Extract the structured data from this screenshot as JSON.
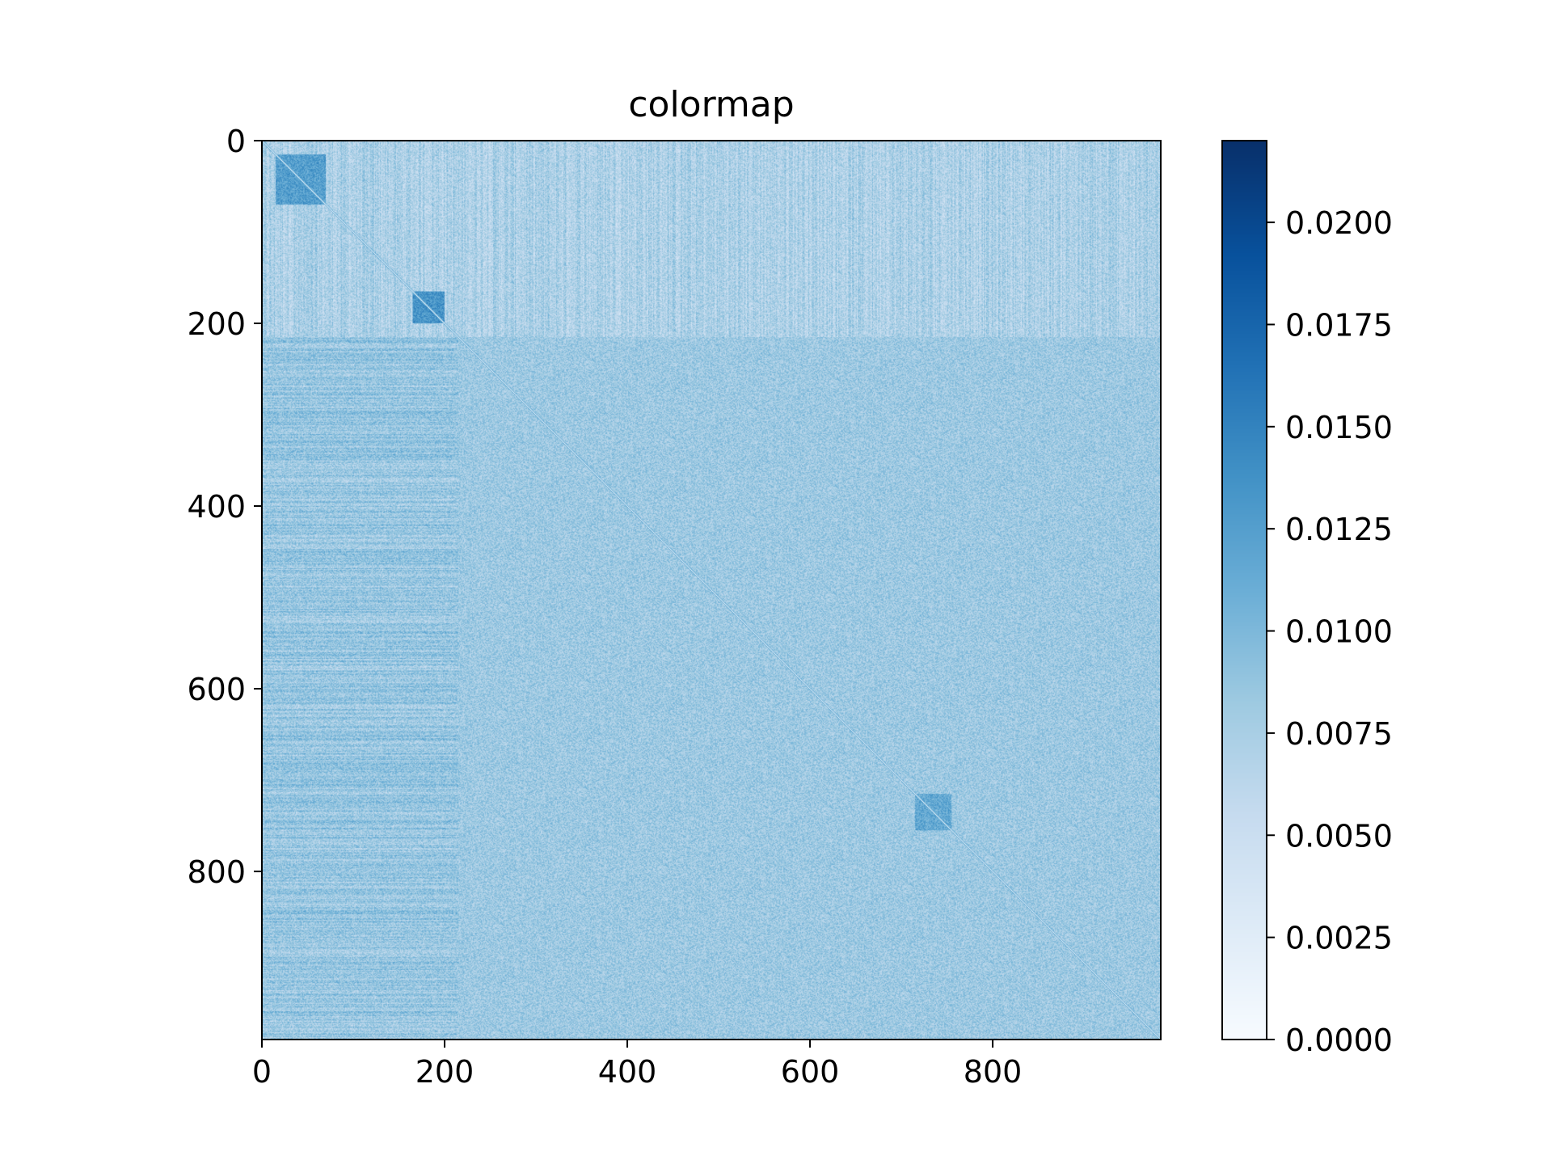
{
  "chart_data": {
    "type": "heatmap",
    "title": "colormap",
    "xlabel": "",
    "ylabel": "",
    "matrix_size": 984,
    "x_ticks": [
      0,
      200,
      400,
      600,
      800
    ],
    "y_ticks": [
      0,
      200,
      400,
      600,
      800
    ],
    "xlim": [
      0,
      984
    ],
    "ylim": [
      984,
      0
    ],
    "y_axis_inverted": true,
    "grid": false,
    "colormap": "Blues",
    "colormap_stops": [
      "#f7fbff",
      "#deebf7",
      "#c6dbef",
      "#9ecae1",
      "#6baed6",
      "#4292c6",
      "#2171b5",
      "#08519c",
      "#08306b"
    ],
    "color_range": [
      0.0,
      0.022
    ],
    "colorbar_ticks": [
      "0.0000",
      "0.0025",
      "0.0050",
      "0.0075",
      "0.0100",
      "0.0125",
      "0.0150",
      "0.0175",
      "0.0200"
    ],
    "colorbar_tick_values": [
      0.0,
      0.0025,
      0.005,
      0.0075,
      0.01,
      0.0125,
      0.015,
      0.0175,
      0.02
    ],
    "background_value": 0.0082,
    "structure": {
      "diagonal_value": 0.0,
      "high_blocks": [
        {
          "rows": [
            15,
            70
          ],
          "cols": [
            15,
            70
          ],
          "value": 0.0125
        },
        {
          "rows": [
            165,
            200
          ],
          "cols": [
            165,
            200
          ],
          "value": 0.0135
        },
        {
          "rows": [
            715,
            755
          ],
          "cols": [
            715,
            755
          ],
          "value": 0.0115
        }
      ],
      "top_band_rows": [
        0,
        215
      ],
      "top_band_value": 0.0072,
      "left_band_cols": [
        0,
        215
      ],
      "left_band_value": 0.0085
    }
  }
}
